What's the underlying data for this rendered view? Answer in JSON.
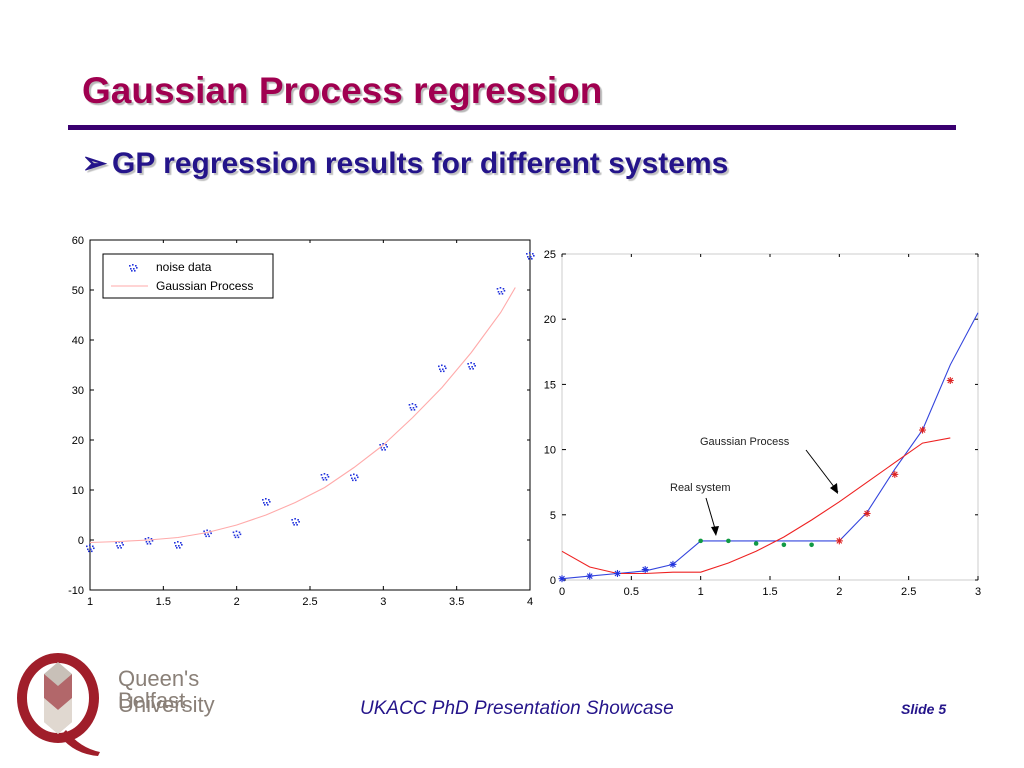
{
  "slide": {
    "title": "Gaussian Process regression",
    "bullet_marker": "➢",
    "bullet_text": "GP regression results for different systems",
    "footer": "UKACC PhD Presentation Showcase",
    "slide_number": "Slide 5"
  },
  "logo": {
    "line1": "Queen's University",
    "line2": "Belfast",
    "colors": {
      "red": "#a01e2a",
      "text": "#8a8078"
    }
  },
  "chart_data": [
    {
      "type": "scatter",
      "xlim": [
        1,
        4
      ],
      "ylim": [
        -10,
        60
      ],
      "xticks": [
        1,
        1.5,
        2,
        2.5,
        3,
        3.5,
        4
      ],
      "yticks": [
        -10,
        0,
        10,
        20,
        30,
        40,
        50,
        60
      ],
      "xticklabels": [
        "1",
        "1.5",
        "2",
        "2.5",
        "3",
        "3.5",
        "4"
      ],
      "yticklabels": [
        "-10",
        "0",
        "10",
        "20",
        "30",
        "40",
        "50",
        "60"
      ],
      "legend_position": "top-left",
      "series": [
        {
          "name": "noise data",
          "kind": "markers",
          "color": "#2233dd",
          "x": [
            1.0,
            1.2,
            1.4,
            1.6,
            1.8,
            2.0,
            2.2,
            2.4,
            2.6,
            2.8,
            3.0,
            3.2,
            3.4,
            3.6,
            3.8,
            4.0
          ],
          "y": [
            -1.5,
            -0.8,
            0.0,
            -0.8,
            1.5,
            1.3,
            7.8,
            3.8,
            12.8,
            12.7,
            18.8,
            26.8,
            34.5,
            35.0,
            50.0,
            57.0
          ]
        },
        {
          "name": "Gaussian Process",
          "kind": "line",
          "color": "#ffaaaa",
          "x": [
            1.0,
            1.2,
            1.4,
            1.6,
            1.8,
            2.0,
            2.2,
            2.4,
            2.6,
            2.8,
            3.0,
            3.2,
            3.4,
            3.6,
            3.8,
            3.9
          ],
          "y": [
            -0.5,
            -0.3,
            0.0,
            0.5,
            1.5,
            3.0,
            5.0,
            7.5,
            10.5,
            14.5,
            19.0,
            24.5,
            30.5,
            37.5,
            45.5,
            50.5
          ]
        }
      ]
    },
    {
      "type": "line",
      "xlim": [
        0,
        3
      ],
      "ylim": [
        0,
        25
      ],
      "xticks": [
        0,
        0.5,
        1,
        1.5,
        2,
        2.5,
        3
      ],
      "yticks": [
        0,
        5,
        10,
        15,
        20,
        25
      ],
      "xticklabels": [
        "0",
        "0.5",
        "1",
        "1.5",
        "2",
        "2.5",
        "3"
      ],
      "yticklabels": [
        "0",
        "5",
        "10",
        "15",
        "20",
        "25"
      ],
      "annotations": [
        {
          "text": "Gaussian Process",
          "color": "#222222"
        },
        {
          "text": "Real system",
          "color": "#222222"
        }
      ],
      "series": [
        {
          "kind": "line",
          "color": "#3344dd",
          "x": [
            0,
            0.2,
            0.4,
            0.6,
            0.8,
            1.0,
            1.2,
            1.4,
            1.6,
            1.8,
            2.0,
            2.2,
            2.4,
            2.6,
            2.8,
            3.0
          ],
          "y": [
            0.1,
            0.3,
            0.5,
            0.7,
            1.2,
            3.0,
            3.0,
            3.0,
            3.0,
            3.0,
            3.0,
            5.2,
            8.5,
            11.5,
            16.5,
            20.5
          ]
        },
        {
          "kind": "line",
          "color": "#ee2222",
          "x": [
            0,
            0.2,
            0.4,
            0.6,
            0.8,
            1.0,
            1.2,
            1.4,
            1.6,
            1.8,
            2.0,
            2.2,
            2.4,
            2.6,
            2.8
          ],
          "y": [
            2.2,
            1.0,
            0.5,
            0.5,
            0.6,
            0.6,
            1.3,
            2.2,
            3.3,
            4.6,
            6.0,
            7.5,
            9.0,
            10.5,
            10.9
          ]
        },
        {
          "kind": "markers",
          "marker": "star",
          "color": "#2233dd",
          "x": [
            0,
            0.2,
            0.4,
            0.6,
            0.8
          ],
          "y": [
            0.1,
            0.3,
            0.5,
            0.8,
            1.2
          ]
        },
        {
          "kind": "markers",
          "marker": "dot",
          "color": "#119944",
          "x": [
            1.0,
            1.2,
            1.4,
            1.6,
            1.8
          ],
          "y": [
            3.0,
            3.0,
            2.8,
            2.7,
            2.7
          ]
        },
        {
          "kind": "markers",
          "marker": "star",
          "color": "#dd2222",
          "x": [
            2.0,
            2.2,
            2.4,
            2.6,
            2.8
          ],
          "y": [
            3.0,
            5.1,
            8.1,
            11.5,
            15.3
          ]
        }
      ]
    }
  ]
}
